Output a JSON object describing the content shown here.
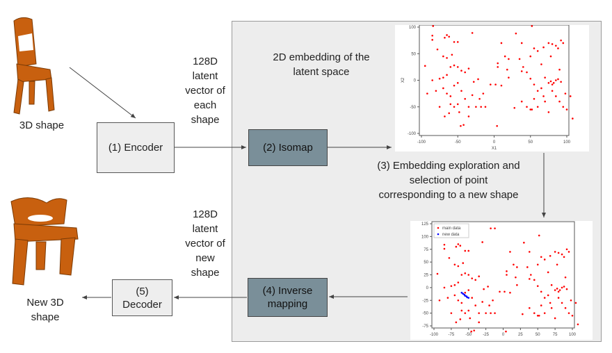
{
  "labels": {
    "input_shape": "3D shape",
    "latent_top": [
      "128D",
      "latent",
      "vector of",
      "each",
      "shape"
    ],
    "encoder": "(1) Encoder",
    "isomap": "(2) Isomap",
    "embedding_title": [
      "2D embedding of the",
      "latent space"
    ],
    "exploration": [
      "(3) Embedding exploration and",
      "selection of point",
      "corresponding to a new shape"
    ],
    "latent_bottom": [
      "128D",
      "latent",
      "vector of",
      "new",
      "shape"
    ],
    "inverse": [
      "(4) Inverse",
      "mapping"
    ],
    "decoder": [
      "(5)",
      "Decoder"
    ],
    "output_shape": [
      "New 3D",
      "shape"
    ]
  },
  "colors": {
    "chair": "#c8600f",
    "box_dark": "#7a8f99",
    "box_light": "#eeeeee",
    "panel": "#ededed",
    "main_data": "#ff0000",
    "new_data": "#0000ff"
  },
  "chart_data": [
    {
      "type": "scatter",
      "xlabel": "X1",
      "ylabel": "X2",
      "xlim": [
        -100,
        100
      ],
      "ylim": [
        -100,
        100
      ],
      "xticks": [
        "-100",
        "-50",
        "0",
        "50",
        "100"
      ],
      "yticks": [
        "100",
        "50",
        "0",
        "-50",
        "-100"
      ],
      "series": [
        {
          "points": "main"
        }
      ]
    },
    {
      "type": "scatter",
      "legend": "top-left",
      "xlim": [
        -100,
        100
      ],
      "ylim": [
        -75,
        125
      ],
      "xticks": [
        "-100",
        "-75",
        "-50",
        "-25",
        "0",
        "25",
        "50",
        "75",
        "100"
      ],
      "yticks": [
        "125",
        "100",
        "75",
        "50",
        "25",
        "0",
        "-25",
        "-50",
        "-75"
      ],
      "legend_entries": [
        "main data",
        "new data"
      ],
      "series": [
        {
          "name": "main data",
          "points": "main"
        },
        {
          "name": "new data",
          "points": [
            [
              -60,
              -10
            ],
            [
              -58,
              -12
            ],
            [
              -56,
              -14
            ],
            [
              -55,
              -16
            ],
            [
              -53,
              -17
            ],
            [
              -52,
              -19
            ],
            [
              -50,
              -20
            ]
          ]
        }
      ]
    }
  ],
  "main_points": [
    [
      -70,
      112
    ],
    [
      -84,
      102
    ],
    [
      -85,
      84
    ],
    [
      -85,
      76
    ],
    [
      -68,
      80
    ],
    [
      -62,
      82
    ],
    [
      -65,
      85
    ],
    [
      -50,
      72
    ],
    [
      -55,
      72
    ],
    [
      -30,
      89
    ],
    [
      -18,
      116
    ],
    [
      -12,
      116
    ],
    [
      -78,
      58
    ],
    [
      -70,
      45
    ],
    [
      -65,
      42
    ],
    [
      -58,
      48
    ],
    [
      -60,
      25
    ],
    [
      -55,
      28
    ],
    [
      -50,
      25
    ],
    [
      -45,
      18
    ],
    [
      -40,
      15
    ],
    [
      -35,
      22
    ],
    [
      -65,
      10
    ],
    [
      -70,
      5
    ],
    [
      -75,
      3
    ],
    [
      -85,
      0
    ],
    [
      -92,
      -25
    ],
    [
      -95,
      27
    ],
    [
      -80,
      -20
    ],
    [
      -70,
      -15
    ],
    [
      -65,
      -25
    ],
    [
      -60,
      -30
    ],
    [
      -55,
      -10
    ],
    [
      -50,
      -5
    ],
    [
      -45,
      -20
    ],
    [
      -40,
      -35
    ],
    [
      -35,
      -50
    ],
    [
      -30,
      -28
    ],
    [
      -20,
      -35
    ],
    [
      -15,
      -25
    ],
    [
      -25,
      -50
    ],
    [
      -28,
      -3
    ],
    [
      -22,
      2
    ],
    [
      -50,
      -45
    ],
    [
      -55,
      -50
    ],
    [
      -62,
      -62
    ],
    [
      -68,
      -68
    ],
    [
      -46,
      -86
    ],
    [
      -42,
      -84
    ],
    [
      -35,
      -68
    ],
    [
      -75,
      -50
    ],
    [
      -60,
      -45
    ],
    [
      -48,
      -60
    ],
    [
      -18,
      -50
    ],
    [
      -12,
      -50
    ],
    [
      10,
      70
    ],
    [
      5,
      32
    ],
    [
      15,
      45
    ],
    [
      20,
      40
    ],
    [
      18,
      20
    ],
    [
      20,
      5
    ],
    [
      2,
      -8
    ],
    [
      10,
      -10
    ],
    [
      28,
      -52
    ],
    [
      30,
      88
    ],
    [
      38,
      70
    ],
    [
      35,
      40
    ],
    [
      40,
      25
    ],
    [
      38,
      17
    ],
    [
      45,
      15
    ],
    [
      50,
      3
    ],
    [
      55,
      -8
    ],
    [
      38,
      -40
    ],
    [
      45,
      -50
    ],
    [
      50,
      -55
    ],
    [
      55,
      -35
    ],
    [
      60,
      -20
    ],
    [
      65,
      -15
    ],
    [
      70,
      5
    ],
    [
      75,
      -5
    ],
    [
      78,
      -2
    ],
    [
      80,
      -8
    ],
    [
      82,
      -5
    ],
    [
      85,
      0
    ],
    [
      88,
      2
    ],
    [
      92,
      -3
    ],
    [
      80,
      -20
    ],
    [
      85,
      -30
    ],
    [
      90,
      -40
    ],
    [
      95,
      -50
    ],
    [
      100,
      -55
    ],
    [
      98,
      -25
    ],
    [
      105,
      -30
    ],
    [
      108,
      -72
    ],
    [
      95,
      70
    ],
    [
      92,
      75
    ],
    [
      88,
      60
    ],
    [
      85,
      65
    ],
    [
      80,
      68
    ],
    [
      75,
      70
    ],
    [
      68,
      62
    ],
    [
      60,
      55
    ],
    [
      55,
      60
    ],
    [
      52,
      102
    ],
    [
      50,
      45
    ],
    [
      65,
      30
    ],
    [
      78,
      45
    ],
    [
      90,
      20
    ],
    [
      70,
      -40
    ],
    [
      75,
      -60
    ],
    [
      60,
      -50
    ],
    [
      52,
      -55
    ],
    [
      68,
      -30
    ],
    [
      4,
      -86
    ],
    [
      -5,
      -8
    ],
    [
      5,
      25
    ]
  ]
}
